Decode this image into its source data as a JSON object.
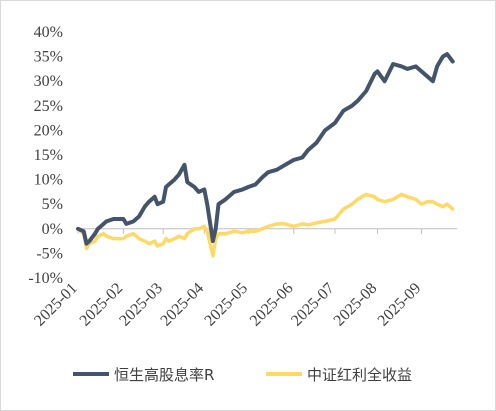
{
  "chart_data": {
    "type": "line",
    "title": "",
    "xlabel": "",
    "ylabel": "",
    "ylim": [
      -0.1,
      0.4
    ],
    "y_tick_labels": [
      "40%",
      "35%",
      "30%",
      "25%",
      "20%",
      "15%",
      "10%",
      "5%",
      "0%",
      "-5%",
      "-10%"
    ],
    "y_tick_values": [
      0.4,
      0.35,
      0.3,
      0.25,
      0.2,
      0.15,
      0.1,
      0.05,
      0.0,
      -0.05,
      -0.1
    ],
    "x_tick_labels": [
      "2025-01",
      "2025-02",
      "2025-03",
      "2025-04",
      "2025-05",
      "2025-06",
      "2025-07",
      "2025-08",
      "2025-09"
    ],
    "x_tick_values": [
      "2025-01-02",
      "2025-02-03",
      "2025-03-03",
      "2025-04-01",
      "2025-05-02",
      "2025-06-03",
      "2025-07-02",
      "2025-08-01",
      "2025-09-01"
    ],
    "grid": false,
    "legend": "bottom",
    "series": [
      {
        "name": "恒生高股息率R",
        "color": "#44546a",
        "x": [
          "2025-01-02",
          "2025-01-06",
          "2025-01-08",
          "2025-01-10",
          "2025-01-14",
          "2025-01-16",
          "2025-01-20",
          "2025-01-22",
          "2025-01-27",
          "2025-02-03",
          "2025-02-05",
          "2025-02-10",
          "2025-02-14",
          "2025-02-18",
          "2025-02-21",
          "2025-02-25",
          "2025-02-27",
          "2025-03-03",
          "2025-03-05",
          "2025-03-07",
          "2025-03-11",
          "2025-03-14",
          "2025-03-18",
          "2025-03-20",
          "2025-03-25",
          "2025-03-28",
          "2025-04-01",
          "2025-04-03",
          "2025-04-07",
          "2025-04-09",
          "2025-04-11",
          "2025-04-16",
          "2025-04-22",
          "2025-04-28",
          "2025-05-02",
          "2025-05-07",
          "2025-05-12",
          "2025-05-16",
          "2025-05-22",
          "2025-05-28",
          "2025-06-03",
          "2025-06-09",
          "2025-06-13",
          "2025-06-19",
          "2025-06-25",
          "2025-07-02",
          "2025-07-08",
          "2025-07-14",
          "2025-07-18",
          "2025-07-24",
          "2025-07-30",
          "2025-08-01",
          "2025-08-06",
          "2025-08-12",
          "2025-08-18",
          "2025-08-22",
          "2025-08-28",
          "2025-09-01",
          "2025-09-05",
          "2025-09-09",
          "2025-09-12",
          "2025-09-16",
          "2025-09-19",
          "2025-09-23"
        ],
        "values": [
          0.0,
          -0.005,
          -0.03,
          -0.025,
          -0.01,
          0.0,
          0.01,
          0.015,
          0.02,
          0.02,
          0.01,
          0.015,
          0.025,
          0.045,
          0.055,
          0.065,
          0.05,
          0.055,
          0.085,
          0.09,
          0.1,
          0.11,
          0.13,
          0.095,
          0.085,
          0.075,
          0.08,
          0.05,
          -0.025,
          0.0,
          0.05,
          0.06,
          0.075,
          0.08,
          0.085,
          0.09,
          0.105,
          0.115,
          0.12,
          0.13,
          0.14,
          0.145,
          0.16,
          0.175,
          0.2,
          0.215,
          0.24,
          0.25,
          0.26,
          0.28,
          0.315,
          0.32,
          0.3,
          0.335,
          0.33,
          0.325,
          0.33,
          0.32,
          0.31,
          0.3,
          0.33,
          0.35,
          0.355,
          0.34
        ]
      },
      {
        "name": "中证红利全收益",
        "color": "#ffd966",
        "x": [
          "2025-01-02",
          "2025-01-06",
          "2025-01-08",
          "2025-01-10",
          "2025-01-14",
          "2025-01-16",
          "2025-01-20",
          "2025-01-22",
          "2025-01-27",
          "2025-02-03",
          "2025-02-05",
          "2025-02-10",
          "2025-02-14",
          "2025-02-18",
          "2025-02-21",
          "2025-02-25",
          "2025-02-27",
          "2025-03-03",
          "2025-03-05",
          "2025-03-07",
          "2025-03-11",
          "2025-03-14",
          "2025-03-18",
          "2025-03-20",
          "2025-03-25",
          "2025-03-28",
          "2025-04-01",
          "2025-04-03",
          "2025-04-07",
          "2025-04-09",
          "2025-04-11",
          "2025-04-16",
          "2025-04-22",
          "2025-04-28",
          "2025-05-02",
          "2025-05-07",
          "2025-05-12",
          "2025-05-16",
          "2025-05-22",
          "2025-05-28",
          "2025-06-03",
          "2025-06-09",
          "2025-06-13",
          "2025-06-19",
          "2025-06-25",
          "2025-07-02",
          "2025-07-08",
          "2025-07-14",
          "2025-07-18",
          "2025-07-24",
          "2025-07-30",
          "2025-08-01",
          "2025-08-06",
          "2025-08-12",
          "2025-08-18",
          "2025-08-22",
          "2025-08-28",
          "2025-09-01",
          "2025-09-05",
          "2025-09-09",
          "2025-09-12",
          "2025-09-16",
          "2025-09-19",
          "2025-09-23"
        ],
        "values": [
          0.0,
          -0.01,
          -0.04,
          -0.03,
          -0.025,
          -0.015,
          -0.01,
          -0.015,
          -0.02,
          -0.02,
          -0.015,
          -0.01,
          -0.02,
          -0.025,
          -0.03,
          -0.025,
          -0.035,
          -0.03,
          -0.02,
          -0.025,
          -0.02,
          -0.015,
          -0.02,
          -0.01,
          0.0,
          0.0,
          0.005,
          -0.005,
          -0.055,
          -0.02,
          -0.01,
          -0.01,
          -0.005,
          -0.008,
          -0.005,
          -0.005,
          0.0,
          0.005,
          0.01,
          0.01,
          0.005,
          0.01,
          0.008,
          0.012,
          0.015,
          0.02,
          0.04,
          0.05,
          0.06,
          0.07,
          0.065,
          0.06,
          0.055,
          0.06,
          0.07,
          0.065,
          0.06,
          0.05,
          0.055,
          0.055,
          0.05,
          0.045,
          0.05,
          0.04
        ]
      }
    ]
  }
}
